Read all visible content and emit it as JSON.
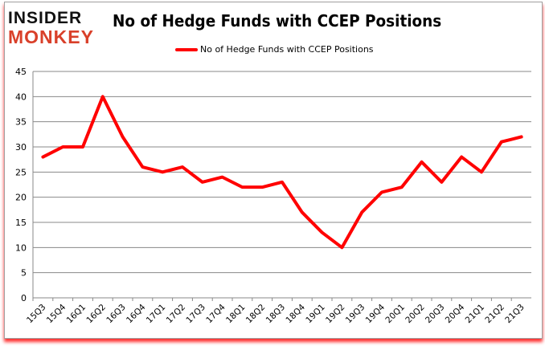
{
  "logo": {
    "line1": "INSIDER",
    "line2": "MONKEY"
  },
  "chart_data": {
    "type": "line",
    "title": "No of Hedge Funds with CCEP Positions",
    "xlabel": "",
    "ylabel": "",
    "categories": [
      "15Q3",
      "15Q4",
      "16Q1",
      "16Q2",
      "16Q3",
      "16Q4",
      "17Q1",
      "17Q2",
      "17Q3",
      "17Q4",
      "18Q1",
      "18Q2",
      "18Q3",
      "18Q4",
      "19Q1",
      "19Q2",
      "19Q3",
      "19Q4",
      "20Q1",
      "20Q2",
      "20Q3",
      "20Q4",
      "21Q1",
      "21Q2",
      "21Q3"
    ],
    "series": [
      {
        "name": "No of Hedge Funds with CCEP Positions",
        "color": "#ff0000",
        "values": [
          28,
          30,
          30,
          40,
          32,
          26,
          25,
          26,
          23,
          24,
          22,
          22,
          23,
          17,
          13,
          10,
          17,
          21,
          22,
          27,
          23,
          28,
          25,
          31,
          32
        ]
      }
    ],
    "ylim": [
      0,
      45
    ],
    "yticks": [
      0,
      5,
      10,
      15,
      20,
      25,
      30,
      35,
      40,
      45
    ],
    "grid": true,
    "legend": "top"
  }
}
